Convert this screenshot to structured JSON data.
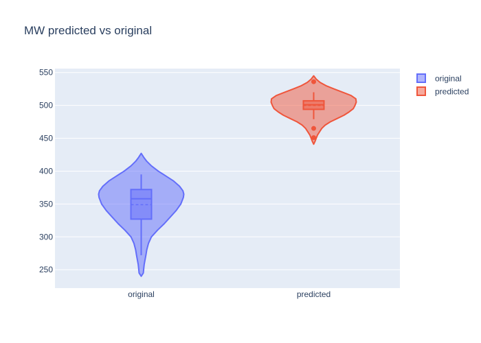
{
  "chart_data": {
    "type": "violin",
    "title": "MW predicted vs original",
    "xlabel": "",
    "ylabel": "",
    "categories": [
      "original",
      "predicted"
    ],
    "ylim": [
      222,
      556
    ],
    "yticks": [
      250,
      300,
      350,
      400,
      450,
      500,
      550
    ],
    "grid": true,
    "legend_position": "top-right",
    "series": [
      {
        "name": "original",
        "color": "#636efa",
        "min": 272,
        "q1": 327,
        "median": 358,
        "mean": 349,
        "q3": 372,
        "max": 395,
        "range": [
          240,
          427
        ],
        "outliers": [],
        "density": [
          [
            240,
            0.0
          ],
          [
            245,
            0.05
          ],
          [
            252,
            0.06
          ],
          [
            258,
            0.07
          ],
          [
            265,
            0.09
          ],
          [
            272,
            0.11
          ],
          [
            280,
            0.13
          ],
          [
            290,
            0.17
          ],
          [
            300,
            0.24
          ],
          [
            310,
            0.38
          ],
          [
            320,
            0.54
          ],
          [
            330,
            0.68
          ],
          [
            340,
            0.82
          ],
          [
            350,
            0.93
          ],
          [
            360,
            0.99
          ],
          [
            365,
            1.0
          ],
          [
            370,
            0.98
          ],
          [
            377,
            0.9
          ],
          [
            385,
            0.76
          ],
          [
            393,
            0.57
          ],
          [
            400,
            0.4
          ],
          [
            408,
            0.24
          ],
          [
            415,
            0.13
          ],
          [
            421,
            0.06
          ],
          [
            427,
            0.0
          ]
        ]
      },
      {
        "name": "predicted",
        "color": "#ef553b",
        "min": 479,
        "q1": 494,
        "median": 501,
        "mean": 500,
        "q3": 507,
        "max": 520,
        "range": [
          441,
          545
        ],
        "outliers": [
          536,
          465,
          451
        ],
        "density": [
          [
            441,
            0.0
          ],
          [
            445,
            0.03
          ],
          [
            450,
            0.06
          ],
          [
            455,
            0.09
          ],
          [
            460,
            0.14
          ],
          [
            465,
            0.19
          ],
          [
            470,
            0.27
          ],
          [
            475,
            0.39
          ],
          [
            480,
            0.55
          ],
          [
            485,
            0.71
          ],
          [
            490,
            0.83
          ],
          [
            495,
            0.93
          ],
          [
            500,
            0.97
          ],
          [
            505,
            1.0
          ],
          [
            510,
            0.99
          ],
          [
            515,
            0.88
          ],
          [
            520,
            0.68
          ],
          [
            525,
            0.48
          ],
          [
            530,
            0.29
          ],
          [
            535,
            0.15
          ],
          [
            540,
            0.06
          ],
          [
            545,
            0.0
          ]
        ]
      }
    ]
  }
}
